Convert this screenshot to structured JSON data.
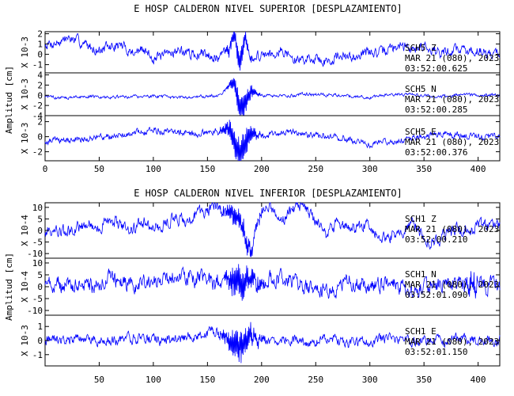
{
  "chart_data": [
    {
      "type": "line",
      "title": "E HOSP CALDERON NIVEL SUPERIOR [DESPLAZAMIENTO]",
      "ylabel": "Amplitud [cm]",
      "xlim": [
        0,
        420
      ],
      "xticks": [
        "0",
        "50",
        "100",
        "150",
        "200",
        "250",
        "300",
        "350",
        "400"
      ],
      "grid": false,
      "line_color": "#0000ff",
      "panels": [
        {
          "station": "SCH5",
          "component": "Z",
          "date": "MAR 21 (080), 2023",
          "time": "03:52:00.625",
          "scale_label": "X 10-3",
          "ylim": [
            -1.8,
            2.2
          ],
          "yticks": [
            "2",
            "1",
            "0",
            "-1"
          ],
          "x": [
            0,
            10,
            20,
            30,
            40,
            50,
            60,
            70,
            80,
            90,
            100,
            110,
            120,
            130,
            140,
            150,
            160,
            170,
            175,
            180,
            185,
            190,
            200,
            210,
            220,
            230,
            240,
            250,
            260,
            270,
            280,
            290,
            300,
            310,
            320,
            330,
            340,
            350,
            360,
            370,
            380,
            390,
            400,
            410,
            420
          ],
          "values": [
            1.0,
            1.1,
            1.6,
            1.3,
            0.8,
            0.4,
            0.7,
            0.9,
            0.2,
            0.4,
            -0.3,
            -0.2,
            0.4,
            0.2,
            -0.1,
            0.2,
            -0.4,
            0.7,
            1.8,
            -0.7,
            1.2,
            -0.6,
            0.0,
            0.2,
            0.4,
            -0.6,
            -0.4,
            -0.3,
            -0.8,
            -0.2,
            -0.4,
            0.0,
            0.3,
            0.1,
            0.6,
            0.8,
            0.5,
            0.9,
            0.4,
            0.1,
            0.6,
            0.3,
            0.4,
            0.1,
            0.2
          ],
          "noise": 0.4,
          "bursts": [
            {
              "center": 178,
              "width": 14,
              "amp": 1.0
            }
          ]
        },
        {
          "station": "SCH5",
          "component": "N",
          "date": "MAR 21 (080), 2023",
          "time": "03:52:00.285",
          "scale_label": "X 10-3",
          "ylim": [
            -4,
            4.4
          ],
          "yticks": [
            "4",
            "2",
            "0",
            "-2",
            "-4"
          ],
          "x": [
            0,
            20,
            40,
            60,
            80,
            100,
            120,
            140,
            160,
            175,
            180,
            190,
            200,
            220,
            240,
            260,
            280,
            300,
            320,
            340,
            360,
            380,
            400,
            420
          ],
          "values": [
            -0.3,
            -0.5,
            -0.2,
            -0.4,
            -0.3,
            -0.2,
            -0.5,
            -0.3,
            0.0,
            2.5,
            -3.0,
            0.8,
            0.0,
            -0.2,
            0.2,
            0.1,
            -0.1,
            -0.4,
            0.2,
            0.1,
            -0.3,
            0.0,
            0.1,
            0.0
          ],
          "noise": 0.25,
          "bursts": [
            {
              "center": 182,
              "width": 14,
              "amp": 2.8
            }
          ]
        },
        {
          "station": "SCH5",
          "component": "E",
          "date": "MAR 21 (080), 2023",
          "time": "03:52:00.376",
          "scale_label": "X 10-3",
          "ylim": [
            -3.2,
            2.8
          ],
          "yticks": [
            "2",
            "0",
            "-2"
          ],
          "x": [
            0,
            20,
            40,
            60,
            80,
            100,
            120,
            140,
            160,
            170,
            180,
            190,
            200,
            220,
            240,
            260,
            280,
            300,
            320,
            340,
            360,
            380,
            400,
            420
          ],
          "values": [
            -0.5,
            -0.4,
            -0.3,
            0.0,
            0.5,
            0.8,
            0.6,
            0.3,
            0.8,
            1.2,
            -2.5,
            0.5,
            0.0,
            0.6,
            0.3,
            0.1,
            -0.4,
            -1.0,
            -0.6,
            -0.2,
            0.4,
            0.2,
            0.0,
            -0.1
          ],
          "noise": 0.35,
          "bursts": [
            {
              "center": 180,
              "width": 18,
              "amp": 2.4
            }
          ]
        }
      ]
    },
    {
      "type": "line",
      "title": "E HOSP CALDERON NIVEL INFERIOR [DESPLAZAMIENTO]",
      "ylabel": "Amplitud [cm]",
      "xlim": [
        0,
        420
      ],
      "xticks": [
        "50",
        "100",
        "150",
        "200",
        "250",
        "300",
        "350",
        "400"
      ],
      "grid": false,
      "line_color": "#0000ff",
      "panels": [
        {
          "station": "SCH1",
          "component": "Z",
          "date": "MAR 21 (080), 2023",
          "time": "03:52:00.210",
          "scale_label": "X 10-4",
          "ylim": [
            -12,
            12
          ],
          "yticks": [
            "10",
            "5",
            "0",
            "-5",
            "-10"
          ],
          "x": [
            0,
            10,
            20,
            30,
            40,
            50,
            60,
            70,
            80,
            90,
            100,
            110,
            120,
            130,
            140,
            150,
            160,
            170,
            180,
            190,
            200,
            210,
            220,
            230,
            240,
            250,
            260,
            270,
            280,
            290,
            300,
            310,
            320,
            330,
            340,
            350,
            360,
            370,
            380,
            390,
            400,
            410,
            420
          ],
          "values": [
            0,
            0,
            -1,
            1,
            3,
            1,
            5,
            3,
            0,
            4,
            1,
            2,
            6,
            3,
            7,
            9,
            10,
            8,
            4,
            -9,
            9,
            10,
            5,
            9,
            10,
            4,
            -2,
            3,
            1,
            2,
            3,
            -3,
            -2,
            0,
            3,
            -3,
            -5,
            -2,
            0,
            -1,
            2,
            1,
            2
          ],
          "noise": 2.2,
          "bursts": [
            {
              "center": 180,
              "width": 20,
              "amp": 4.5
            }
          ]
        },
        {
          "station": "SCH1",
          "component": "N",
          "date": "MAR 21 (080), 2023",
          "time": "03:52:01.090",
          "scale_label": "X 10-4",
          "ylim": [
            -12,
            12
          ],
          "yticks": [
            "10",
            "5",
            "0",
            "-5",
            "-10"
          ],
          "x": [
            0,
            20,
            40,
            60,
            80,
            100,
            120,
            140,
            160,
            170,
            180,
            190,
            200,
            220,
            240,
            260,
            280,
            300,
            320,
            340,
            360,
            380,
            400,
            420
          ],
          "values": [
            2,
            1,
            0,
            3,
            1,
            2,
            5,
            3,
            2,
            4,
            0,
            3,
            2,
            4,
            0,
            -2,
            2,
            0,
            1,
            -1,
            0,
            2,
            1,
            0
          ],
          "noise": 2.8,
          "bursts": [
            {
              "center": 180,
              "width": 22,
              "amp": 6.0
            },
            {
              "center": 395,
              "width": 8,
              "amp": 4.0
            }
          ]
        },
        {
          "station": "SCH1",
          "component": "E",
          "date": "MAR 21 (080), 2023",
          "time": "03:52:01.150",
          "scale_label": "X 10-3",
          "ylim": [
            -1.8,
            1.8
          ],
          "yticks": [
            "1",
            "0",
            "-1"
          ],
          "x": [
            0,
            20,
            40,
            60,
            80,
            100,
            120,
            140,
            160,
            170,
            180,
            190,
            200,
            220,
            240,
            260,
            280,
            300,
            320,
            340,
            360,
            380,
            400,
            420
          ],
          "values": [
            0,
            0,
            0.1,
            0.0,
            0.2,
            0.1,
            0.0,
            0.4,
            0.6,
            0.1,
            -0.4,
            0.3,
            0.0,
            0.2,
            -0.1,
            0.1,
            -0.2,
            0.0,
            0.1,
            -0.1,
            0.0,
            0.2,
            0.0,
            0.0
          ],
          "noise": 0.3,
          "bursts": [
            {
              "center": 180,
              "width": 20,
              "amp": 1.1
            }
          ]
        }
      ]
    }
  ]
}
